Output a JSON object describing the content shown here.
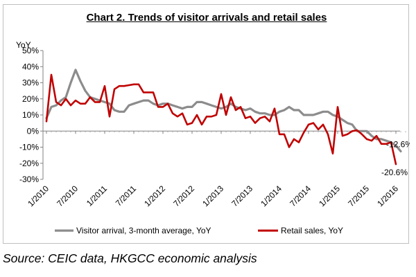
{
  "chart_data": {
    "type": "line",
    "title": "Chart 2. Trends of visitor arrivals and retail sales",
    "ylabel": "YoY",
    "xlabel": "",
    "ylim": [
      -30,
      50
    ],
    "yticks": [
      50,
      40,
      30,
      20,
      10,
      0,
      -10,
      -20,
      -30
    ],
    "ytick_labels": [
      "50%",
      "40%",
      "30%",
      "20%",
      "10%",
      "0%",
      "-10%",
      "-20%",
      "-30%"
    ],
    "xticks": [
      "1/2010",
      "7/2010",
      "1/2011",
      "7/2011",
      "1/2012",
      "7/2012",
      "1/2013",
      "7/2013",
      "1/2014",
      "7/2014",
      "1/2015",
      "7/2015",
      "1/2016"
    ],
    "grid": false,
    "legend_position": "bottom",
    "series": [
      {
        "name": "Visitor arrival, 3-month average, YoY",
        "color": "#8c8c8c",
        "points": [
          [
            "1/2010",
            8
          ],
          [
            "2/2010",
            15
          ],
          [
            "3/2010",
            16
          ],
          [
            "4/2010",
            19
          ],
          [
            "5/2010",
            21
          ],
          [
            "6/2010",
            30
          ],
          [
            "7/2010",
            38
          ],
          [
            "8/2010",
            31
          ],
          [
            "9/2010",
            25
          ],
          [
            "10/2010",
            21
          ],
          [
            "11/2010",
            20
          ],
          [
            "12/2010",
            19
          ],
          [
            "1/2011",
            18
          ],
          [
            "2/2011",
            17
          ],
          [
            "3/2011",
            13
          ],
          [
            "4/2011",
            12
          ],
          [
            "5/2011",
            12
          ],
          [
            "6/2011",
            16
          ],
          [
            "7/2011",
            17
          ],
          [
            "8/2011",
            18
          ],
          [
            "9/2011",
            19
          ],
          [
            "10/2011",
            19
          ],
          [
            "11/2011",
            17
          ],
          [
            "12/2011",
            16
          ],
          [
            "1/2012",
            17
          ],
          [
            "2/2012",
            17
          ],
          [
            "3/2012",
            16
          ],
          [
            "4/2012",
            15
          ],
          [
            "5/2012",
            14
          ],
          [
            "6/2012",
            15
          ],
          [
            "7/2012",
            15
          ],
          [
            "8/2012",
            18
          ],
          [
            "9/2012",
            18
          ],
          [
            "10/2012",
            17
          ],
          [
            "11/2012",
            16
          ],
          [
            "12/2012",
            15
          ],
          [
            "1/2013",
            14
          ],
          [
            "2/2013",
            15
          ],
          [
            "3/2013",
            17
          ],
          [
            "4/2013",
            15
          ],
          [
            "5/2013",
            14
          ],
          [
            "6/2013",
            13
          ],
          [
            "7/2013",
            14
          ],
          [
            "8/2013",
            12
          ],
          [
            "9/2013",
            11
          ],
          [
            "10/2013",
            11
          ],
          [
            "11/2013",
            10
          ],
          [
            "12/2013",
            10
          ],
          [
            "1/2014",
            12
          ],
          [
            "2/2014",
            13
          ],
          [
            "3/2014",
            15
          ],
          [
            "4/2014",
            13
          ],
          [
            "5/2014",
            13
          ],
          [
            "6/2014",
            10
          ],
          [
            "7/2014",
            10
          ],
          [
            "8/2014",
            10
          ],
          [
            "9/2014",
            11
          ],
          [
            "10/2014",
            12
          ],
          [
            "11/2014",
            12
          ],
          [
            "12/2014",
            10
          ],
          [
            "1/2015",
            9
          ],
          [
            "2/2015",
            7
          ],
          [
            "3/2015",
            5
          ],
          [
            "4/2015",
            4
          ],
          [
            "5/2015",
            0
          ],
          [
            "6/2015",
            0
          ],
          [
            "7/2015",
            0
          ],
          [
            "8/2015",
            -3
          ],
          [
            "9/2015",
            -5
          ],
          [
            "10/2015",
            -5
          ],
          [
            "11/2015",
            -6
          ],
          [
            "12/2015",
            -7
          ],
          [
            "1/2016",
            -9
          ],
          [
            "2/2016",
            -12.6
          ]
        ],
        "end_label": "-12.6%"
      },
      {
        "name": "Retail sales, YoY",
        "color": "#c00000",
        "points": [
          [
            "1/2010",
            6
          ],
          [
            "2/2010",
            35
          ],
          [
            "3/2010",
            18
          ],
          [
            "4/2010",
            16
          ],
          [
            "5/2010",
            20
          ],
          [
            "6/2010",
            16
          ],
          [
            "7/2010",
            19
          ],
          [
            "8/2010",
            17
          ],
          [
            "9/2010",
            17
          ],
          [
            "10/2010",
            21
          ],
          [
            "11/2010",
            18
          ],
          [
            "12/2010",
            18
          ],
          [
            "1/2011",
            28
          ],
          [
            "2/2011",
            9
          ],
          [
            "3/2011",
            26
          ],
          [
            "4/2011",
            28
          ],
          [
            "5/2011",
            28
          ],
          [
            "6/2011",
            28.5
          ],
          [
            "7/2011",
            29
          ],
          [
            "8/2011",
            29
          ],
          [
            "9/2011",
            24
          ],
          [
            "10/2011",
            24
          ],
          [
            "11/2011",
            24
          ],
          [
            "12/2011",
            15
          ],
          [
            "1/2012",
            15
          ],
          [
            "2/2012",
            17
          ],
          [
            "3/2012",
            11
          ],
          [
            "4/2012",
            9
          ],
          [
            "5/2012",
            11
          ],
          [
            "6/2012",
            4
          ],
          [
            "7/2012",
            5
          ],
          [
            "8/2012",
            10
          ],
          [
            "9/2012",
            4
          ],
          [
            "10/2012",
            9
          ],
          [
            "11/2012",
            9
          ],
          [
            "12/2012",
            10
          ],
          [
            "1/2013",
            23
          ],
          [
            "2/2013",
            10
          ],
          [
            "3/2013",
            21
          ],
          [
            "4/2013",
            13
          ],
          [
            "5/2013",
            15
          ],
          [
            "6/2013",
            8
          ],
          [
            "7/2013",
            9
          ],
          [
            "8/2013",
            5
          ],
          [
            "9/2013",
            8
          ],
          [
            "10/2013",
            9
          ],
          [
            "11/2013",
            6
          ],
          [
            "12/2013",
            14
          ],
          [
            "1/2014",
            -2
          ],
          [
            "2/2014",
            -2
          ],
          [
            "3/2014",
            -10
          ],
          [
            "4/2014",
            -5
          ],
          [
            "5/2014",
            -7
          ],
          [
            "6/2014",
            -1
          ],
          [
            "7/2014",
            4
          ],
          [
            "8/2014",
            5
          ],
          [
            "9/2014",
            1
          ],
          [
            "10/2014",
            4
          ],
          [
            "11/2014",
            -2
          ],
          [
            "12/2014",
            -14
          ],
          [
            "1/2015",
            15
          ],
          [
            "2/2015",
            -3
          ],
          [
            "3/2015",
            -2
          ],
          [
            "4/2015",
            0
          ],
          [
            "5/2015",
            0.5
          ],
          [
            "6/2015",
            -2
          ],
          [
            "7/2015",
            -5
          ],
          [
            "8/2015",
            -6
          ],
          [
            "9/2015",
            -3
          ],
          [
            "10/2015",
            -8
          ],
          [
            "11/2015",
            -8
          ],
          [
            "12/2015",
            -7
          ],
          [
            "1/2016",
            -20.6
          ]
        ],
        "end_label": "-20.6%"
      }
    ]
  },
  "source_note": "Source: CEIC data, HKGCC economic analysis"
}
